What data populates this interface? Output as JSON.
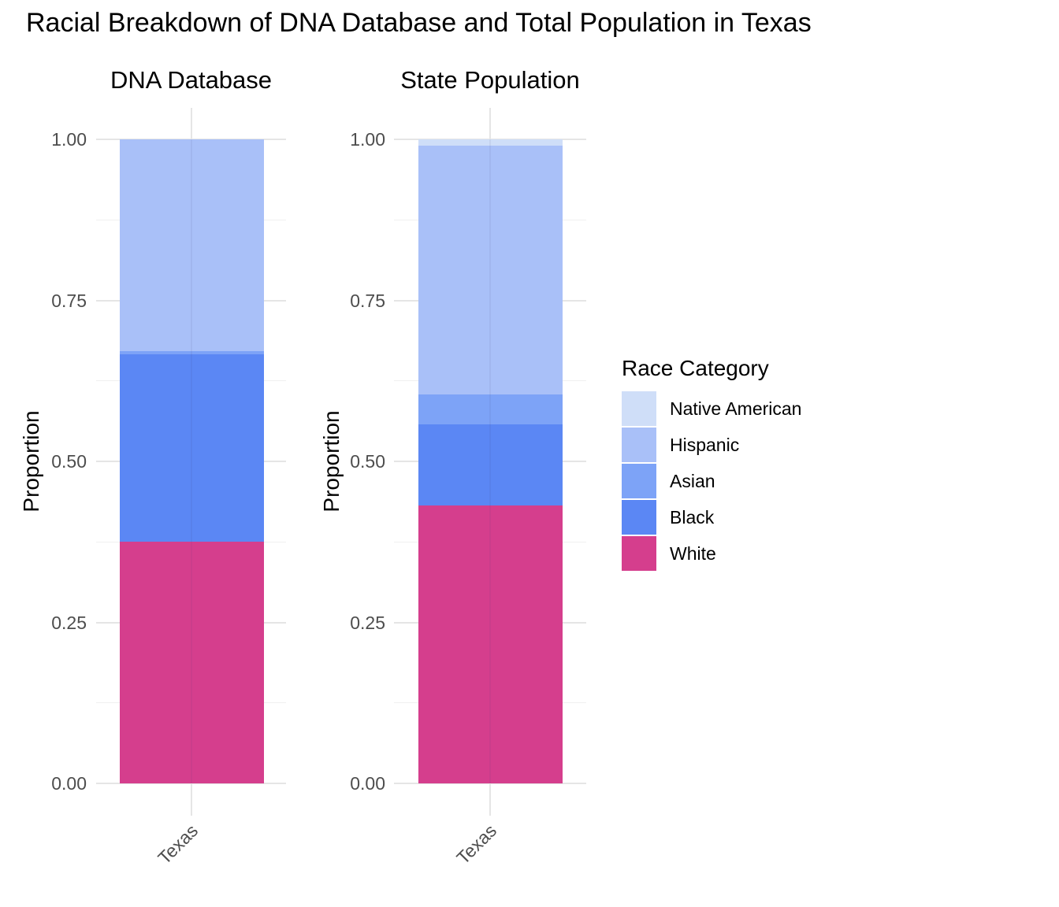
{
  "title": "Racial Breakdown of DNA Database and Total Population in Texas",
  "chart_data": {
    "type": "bar",
    "variant": "stacked_proportion_100pct",
    "categories": [
      "Texas"
    ],
    "grid": true,
    "legend_position": "right",
    "ylim": [
      0,
      1
    ],
    "yticks": [
      {
        "label": "1.00",
        "value": 1.0
      },
      {
        "label": "0.75",
        "value": 0.75
      },
      {
        "label": "0.50",
        "value": 0.5
      },
      {
        "label": "0.25",
        "value": 0.25
      },
      {
        "label": "0.00",
        "value": 0.0
      }
    ],
    "yminor": [
      0.875,
      0.625,
      0.375,
      0.125
    ],
    "panels": [
      {
        "title": "DNA Database",
        "ylabel": "Proportion",
        "xtick": "Texas",
        "stack_top_to_bottom": [
          {
            "race": "Native American",
            "value": 0.0
          },
          {
            "race": "Hispanic",
            "value": 0.329
          },
          {
            "race": "Asian",
            "value": 0.005
          },
          {
            "race": "Black",
            "value": 0.291
          },
          {
            "race": "White",
            "value": 0.375
          }
        ]
      },
      {
        "title": "State Population",
        "ylabel": "Proportion",
        "xtick": "Texas",
        "stack_top_to_bottom": [
          {
            "race": "Native American",
            "value": 0.01
          },
          {
            "race": "Hispanic",
            "value": 0.386
          },
          {
            "race": "Asian",
            "value": 0.047
          },
          {
            "race": "Black",
            "value": 0.125
          },
          {
            "race": "White",
            "value": 0.432
          }
        ]
      }
    ]
  },
  "legend": {
    "title": "Race Category",
    "entries": [
      "Native American",
      "Hispanic",
      "Asian",
      "Black",
      "White"
    ]
  },
  "colors": {
    "Native American": "#cfdef8",
    "Hispanic": "#a9c0f8",
    "Asian": "#7da3f7",
    "Black": "#5b87f4",
    "White": "#d53e8d",
    "grid_major": "#e5e5e5",
    "grid_minor": "#f0f0f0",
    "axis_text": "#4d4d4d"
  }
}
